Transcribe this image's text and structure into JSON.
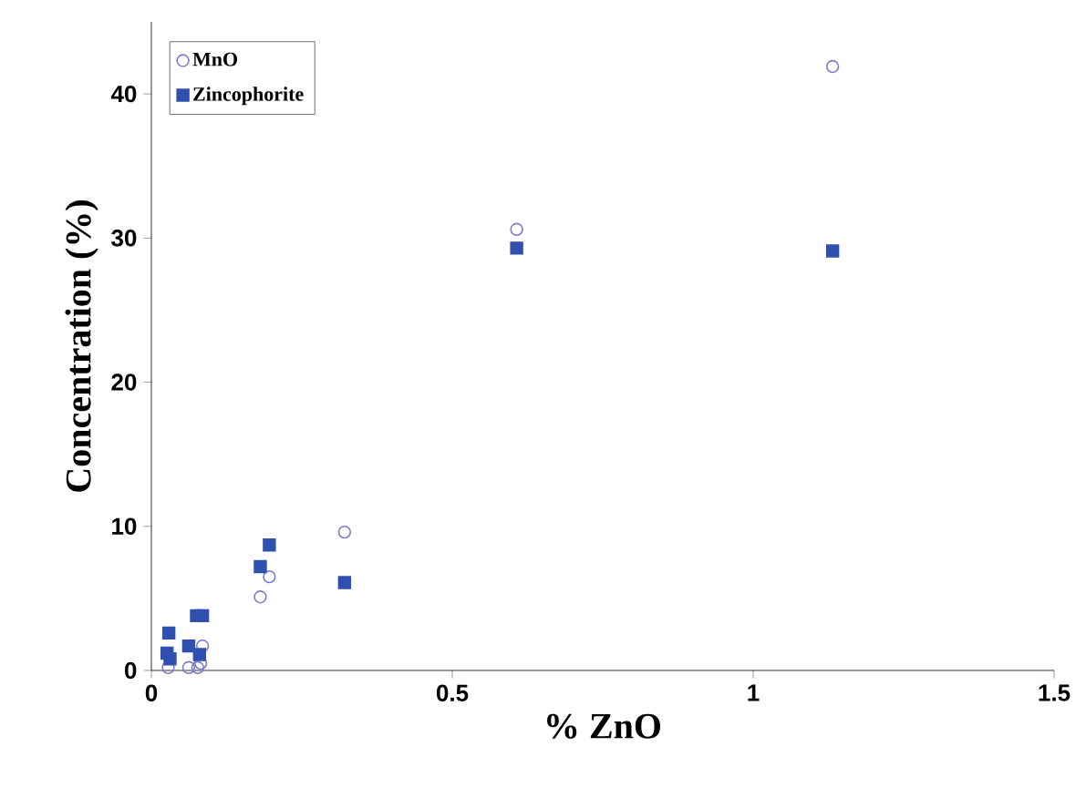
{
  "chart_data": {
    "type": "scatter",
    "xlabel": "% ZnO",
    "ylabel": "Concentration (%)",
    "xlim": [
      0,
      1.5
    ],
    "ylim": [
      0,
      45
    ],
    "xticks": [
      0,
      0.5,
      1,
      1.5
    ],
    "yticks": [
      0,
      10,
      20,
      30,
      40
    ],
    "legend": "top left",
    "grid": false,
    "series": [
      {
        "name": "MnO",
        "color": "#7b7bd0",
        "marker": "circle",
        "x": [
          0.028,
          0.062,
          0.077,
          0.082,
          0.085,
          0.181,
          0.196,
          0.321,
          0.607,
          1.132
        ],
        "values": [
          0.2,
          0.2,
          0.2,
          0.5,
          1.7,
          5.1,
          6.5,
          9.6,
          30.6,
          41.9
        ]
      },
      {
        "name": "Zincophorite",
        "color": "#3050b0",
        "marker": "square",
        "x": [
          0.029,
          0.026,
          0.031,
          0.062,
          0.075,
          0.085,
          0.08,
          0.181,
          0.196,
          0.321,
          0.607,
          1.132
        ],
        "values": [
          2.6,
          1.2,
          0.8,
          1.7,
          3.8,
          3.8,
          1.1,
          7.2,
          8.7,
          6.1,
          29.3,
          29.1
        ]
      }
    ]
  }
}
